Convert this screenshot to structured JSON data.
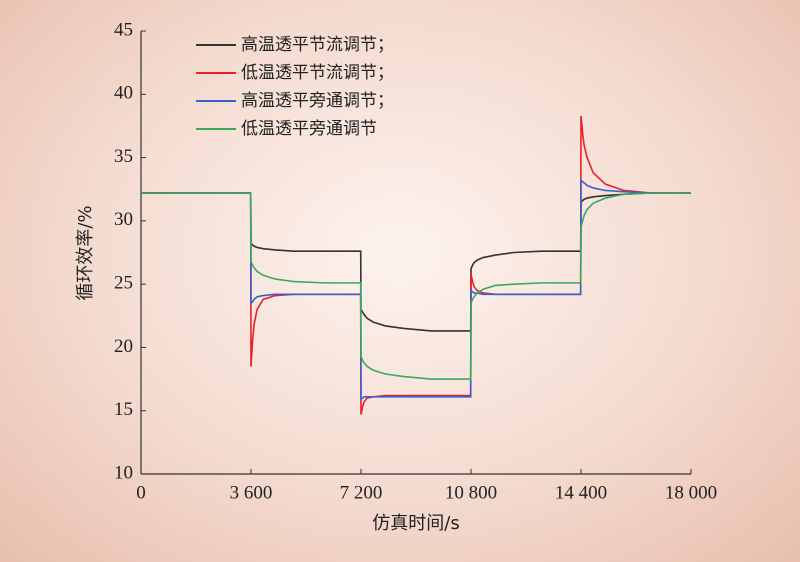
{
  "chart_data": {
    "type": "line",
    "ylabel": "循环效率/%",
    "xlabel": "仿真时间/s",
    "xlim": [
      0,
      18000
    ],
    "ylim": [
      10,
      45
    ],
    "xticks": [
      0,
      {
        "value": 3600,
        "label": "3 600"
      },
      {
        "value": 7200,
        "label": "7 200"
      },
      {
        "value": 10800,
        "label": "10 800"
      },
      {
        "value": 14400,
        "label": "14 400"
      },
      {
        "value": 18000,
        "label": "18 000"
      }
    ],
    "yticks": [
      10,
      15,
      20,
      25,
      30,
      35,
      40,
      45
    ],
    "legend": "upper left",
    "grid": false,
    "x": [
      0,
      3590,
      3600,
      3650,
      3700,
      3800,
      4000,
      4400,
      5000,
      6000,
      7190,
      7200,
      7250,
      7300,
      7400,
      7600,
      8000,
      8600,
      9500,
      10790,
      10800,
      10850,
      10900,
      11000,
      11200,
      11600,
      12200,
      13100,
      14390,
      14400,
      14450,
      14500,
      14600,
      14800,
      15200,
      15800,
      16700,
      18000
    ],
    "series": [
      {
        "name": "高温透平节流调节；",
        "color": "#333333",
        "values": [
          32.2,
          32.2,
          28.2,
          28.1,
          28.0,
          27.9,
          27.8,
          27.7,
          27.6,
          27.6,
          27.6,
          23.0,
          22.8,
          22.6,
          22.3,
          22.0,
          21.7,
          21.5,
          21.3,
          21.3,
          26.2,
          26.5,
          26.7,
          26.9,
          27.1,
          27.3,
          27.5,
          27.6,
          27.6,
          31.5,
          31.6,
          31.7,
          31.8,
          31.9,
          32.0,
          32.1,
          32.2,
          32.2
        ]
      },
      {
        "name": "低温透平节流调节；",
        "color": "#e8202a",
        "values": [
          32.2,
          32.2,
          18.5,
          20.5,
          21.8,
          23.0,
          23.8,
          24.1,
          24.2,
          24.2,
          24.2,
          14.7,
          15.3,
          15.7,
          16.0,
          16.1,
          16.2,
          16.2,
          16.2,
          16.2,
          25.8,
          25.2,
          24.8,
          24.5,
          24.3,
          24.2,
          24.2,
          24.2,
          24.2,
          38.3,
          37.0,
          36.0,
          35.0,
          33.8,
          32.9,
          32.4,
          32.2,
          32.2
        ]
      },
      {
        "name": "高温透平旁通调节；",
        "color": "#3a5fcd",
        "values": [
          32.2,
          32.2,
          23.5,
          23.6,
          23.8,
          24.0,
          24.1,
          24.2,
          24.2,
          24.2,
          24.2,
          15.9,
          16.0,
          16.1,
          16.1,
          16.1,
          16.1,
          16.1,
          16.1,
          16.1,
          24.5,
          24.4,
          24.3,
          24.3,
          24.2,
          24.2,
          24.2,
          24.2,
          24.2,
          33.2,
          33.1,
          33.0,
          32.8,
          32.6,
          32.4,
          32.3,
          32.2,
          32.2
        ]
      },
      {
        "name": "低温透平旁通调节",
        "color": "#3aaa5a",
        "values": [
          32.2,
          32.2,
          26.8,
          26.5,
          26.3,
          26.0,
          25.7,
          25.4,
          25.2,
          25.1,
          25.1,
          19.3,
          19.0,
          18.8,
          18.5,
          18.2,
          17.9,
          17.7,
          17.5,
          17.5,
          23.5,
          23.8,
          24.0,
          24.3,
          24.6,
          24.9,
          25.0,
          25.1,
          25.1,
          29.5,
          30.0,
          30.4,
          30.9,
          31.4,
          31.8,
          32.1,
          32.2,
          32.2
        ]
      }
    ]
  }
}
